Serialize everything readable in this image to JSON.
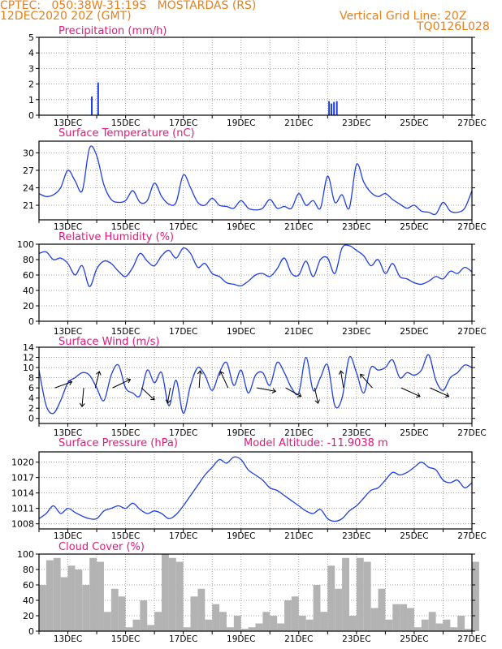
{
  "header": {
    "line1_left": "CPTEC:   050:38W-31:19S   MOSTARDAS (RS)",
    "line2_left": "12DEC2020 20Z (GMT)",
    "line1_right": "Vertical Grid Line: 20Z",
    "line2_right": "TQ0126L028"
  },
  "colors": {
    "header": "#e8801a",
    "panel_title": "#e0197a",
    "series": "#1f3fe0",
    "cloud_fill": "#b3b3b3",
    "wind_arrow": "#000000",
    "grid": "#888888"
  },
  "chart_data": [
    {
      "type": "bar",
      "title": "Precipitation (mm/h)",
      "x_tick_labels": [
        "13DEC",
        "15DEC",
        "17DEC",
        "19DEC",
        "21DEC",
        "23DEC",
        "25DEC",
        "27DEC"
      ],
      "xlim_days": [
        12.0,
        27.0
      ],
      "ylim": [
        0,
        5
      ],
      "y_ticks": [
        0,
        1,
        2,
        3,
        4,
        5
      ],
      "grid": true,
      "series": [
        {
          "x": [
            13.83,
            14.05,
            22.05,
            22.13,
            22.22,
            22.32
          ],
          "values": [
            1.2,
            2.1,
            0.9,
            0.75,
            0.85,
            0.9
          ]
        }
      ]
    },
    {
      "type": "line",
      "title": "Surface Temperature (nC)",
      "x_tick_labels": [
        "13DEC",
        "15DEC",
        "17DEC",
        "19DEC",
        "21DEC",
        "23DEC",
        "25DEC",
        "27DEC"
      ],
      "xlim_days": [
        12.0,
        27.0
      ],
      "ylim": [
        18.5,
        32
      ],
      "y_ticks": [
        21,
        24,
        27,
        30
      ],
      "grid": true,
      "series": [
        {
          "x": [
            12.0,
            12.25,
            12.5,
            12.75,
            13.0,
            13.25,
            13.5,
            13.75,
            14.0,
            14.25,
            14.5,
            14.75,
            15.0,
            15.25,
            15.5,
            15.75,
            16.0,
            16.25,
            16.5,
            16.75,
            17.0,
            17.25,
            17.5,
            17.75,
            18.0,
            18.25,
            18.5,
            18.75,
            19.0,
            19.25,
            19.5,
            19.75,
            20.0,
            20.25,
            20.5,
            20.75,
            21.0,
            21.25,
            21.5,
            21.75,
            22.0,
            22.25,
            22.5,
            22.75,
            23.0,
            23.25,
            23.5,
            23.75,
            24.0,
            24.25,
            24.5,
            24.75,
            25.0,
            25.25,
            25.5,
            25.75,
            26.0,
            26.25,
            26.5,
            26.75,
            27.0
          ],
          "values": [
            23.0,
            22.5,
            22.8,
            24.0,
            27.0,
            25.2,
            23.5,
            30.8,
            29.5,
            24.5,
            22.0,
            21.5,
            21.8,
            23.5,
            21.5,
            21.8,
            24.8,
            22.5,
            21.2,
            21.5,
            26.2,
            24.0,
            21.5,
            21.0,
            22.2,
            21.0,
            20.8,
            20.5,
            21.8,
            20.5,
            20.2,
            20.5,
            22.0,
            20.5,
            20.8,
            20.5,
            23.0,
            21.0,
            21.8,
            20.5,
            26.0,
            21.5,
            22.8,
            20.5,
            28.0,
            25.0,
            23.2,
            22.5,
            23.0,
            22.0,
            21.2,
            20.5,
            21.0,
            20.0,
            19.8,
            19.5,
            21.5,
            20.0,
            19.8,
            20.5,
            23.5
          ]
        }
      ]
    },
    {
      "type": "line",
      "title": "Relative Humidity (%)",
      "x_tick_labels": [
        "13DEC",
        "15DEC",
        "17DEC",
        "19DEC",
        "21DEC",
        "23DEC",
        "25DEC",
        "27DEC"
      ],
      "xlim_days": [
        12.0,
        27.0
      ],
      "ylim": [
        0,
        100
      ],
      "y_ticks": [
        0,
        20,
        40,
        60,
        80,
        100
      ],
      "grid": true,
      "series": [
        {
          "x": [
            12.0,
            12.25,
            12.5,
            12.75,
            13.0,
            13.25,
            13.5,
            13.75,
            14.0,
            14.25,
            14.5,
            14.75,
            15.0,
            15.25,
            15.5,
            15.75,
            16.0,
            16.25,
            16.5,
            16.75,
            17.0,
            17.25,
            17.5,
            17.75,
            18.0,
            18.25,
            18.5,
            18.75,
            19.0,
            19.25,
            19.5,
            19.75,
            20.0,
            20.25,
            20.5,
            20.75,
            21.0,
            21.25,
            21.5,
            21.75,
            22.0,
            22.25,
            22.5,
            22.75,
            23.0,
            23.25,
            23.5,
            23.75,
            24.0,
            24.25,
            24.5,
            24.75,
            25.0,
            25.25,
            25.5,
            25.75,
            26.0,
            26.25,
            26.5,
            26.75,
            27.0
          ],
          "values": [
            88,
            90,
            80,
            82,
            75,
            60,
            72,
            45,
            68,
            78,
            75,
            65,
            58,
            70,
            88,
            78,
            72,
            85,
            92,
            82,
            95,
            88,
            70,
            75,
            62,
            58,
            50,
            48,
            46,
            52,
            60,
            62,
            58,
            68,
            82,
            62,
            60,
            78,
            58,
            80,
            82,
            62,
            95,
            98,
            92,
            85,
            72,
            80,
            62,
            75,
            58,
            55,
            50,
            48,
            52,
            58,
            55,
            65,
            62,
            70,
            64
          ]
        }
      ]
    },
    {
      "type": "line",
      "title": "Surface Wind (m/s)",
      "x_tick_labels": [
        "13DEC",
        "15DEC",
        "17DEC",
        "19DEC",
        "21DEC",
        "23DEC",
        "25DEC",
        "27DEC"
      ],
      "xlim_days": [
        12.0,
        27.0
      ],
      "ylim": [
        -1,
        14
      ],
      "y_ticks": [
        0,
        2,
        4,
        6,
        8,
        10,
        12,
        14
      ],
      "grid": true,
      "series": [
        {
          "x": [
            12.0,
            12.25,
            12.5,
            12.75,
            13.0,
            13.25,
            13.5,
            13.75,
            14.0,
            14.25,
            14.5,
            14.75,
            15.0,
            15.25,
            15.5,
            15.75,
            16.0,
            16.25,
            16.5,
            16.75,
            17.0,
            17.25,
            17.5,
            17.75,
            18.0,
            18.25,
            18.5,
            18.75,
            19.0,
            19.25,
            19.5,
            19.75,
            20.0,
            20.25,
            20.5,
            20.75,
            21.0,
            21.25,
            21.5,
            21.75,
            22.0,
            22.25,
            22.5,
            22.75,
            23.0,
            23.25,
            23.5,
            23.75,
            24.0,
            24.25,
            24.5,
            24.75,
            25.0,
            25.25,
            25.5,
            25.75,
            26.0,
            26.25,
            26.5,
            26.75,
            27.0
          ],
          "values": [
            9.5,
            2.5,
            1.0,
            3.5,
            7.0,
            8.0,
            9.0,
            8.5,
            6.0,
            3.5,
            8.5,
            10.5,
            6.0,
            5.0,
            4.5,
            9.5,
            7.0,
            9.0,
            2.5,
            7.5,
            1.0,
            6.5,
            10.0,
            8.5,
            5.5,
            9.0,
            11.0,
            6.5,
            9.5,
            5.0,
            8.5,
            9.0,
            6.5,
            11.0,
            9.0,
            6.0,
            5.0,
            12.0,
            5.5,
            8.0,
            10.5,
            2.5,
            4.0,
            12.0,
            9.0,
            5.0,
            10.0,
            9.5,
            10.0,
            11.5,
            8.0,
            9.0,
            8.5,
            9.5,
            12.5,
            7.5,
            5.5,
            8.0,
            9.0,
            10.5,
            10.0
          ]
        }
      ],
      "wind_vectors": [
        {
          "day": 12.55,
          "u": 5.0,
          "v": 1.8
        },
        {
          "day": 13.55,
          "u": -0.5,
          "v": -5.5
        },
        {
          "day": 13.95,
          "u": 1.2,
          "v": 4.8
        },
        {
          "day": 14.55,
          "u": 5.2,
          "v": 2.5
        },
        {
          "day": 15.55,
          "u": 3.8,
          "v": -3.5
        },
        {
          "day": 16.55,
          "u": -0.8,
          "v": -4.5
        },
        {
          "day": 17.55,
          "u": 0.3,
          "v": 5.0
        },
        {
          "day": 18.55,
          "u": -2.2,
          "v": 4.8
        },
        {
          "day": 19.55,
          "u": 5.5,
          "v": -1.0
        },
        {
          "day": 20.55,
          "u": 4.5,
          "v": -2.5
        },
        {
          "day": 21.55,
          "u": 1.0,
          "v": -4.5
        },
        {
          "day": 22.55,
          "u": -0.8,
          "v": 5.0
        },
        {
          "day": 23.55,
          "u": -3.5,
          "v": 4.0
        },
        {
          "day": 24.55,
          "u": 5.5,
          "v": -2.5
        },
        {
          "day": 25.55,
          "u": 5.5,
          "v": -2.5
        }
      ]
    },
    {
      "type": "line",
      "title": "Surface Pressure (hPa)",
      "annotation": "Model Altitude: -11.9038 m",
      "x_tick_labels": [
        "13DEC",
        "15DEC",
        "17DEC",
        "19DEC",
        "21DEC",
        "23DEC",
        "25DEC",
        "27DEC"
      ],
      "xlim_days": [
        12.0,
        27.0
      ],
      "ylim": [
        1007,
        1022
      ],
      "y_ticks": [
        1008,
        1011,
        1014,
        1017,
        1020
      ],
      "grid": true,
      "series": [
        {
          "x": [
            12.0,
            12.25,
            12.5,
            12.75,
            13.0,
            13.25,
            13.5,
            13.75,
            14.0,
            14.25,
            14.5,
            14.75,
            15.0,
            15.25,
            15.5,
            15.75,
            16.0,
            16.25,
            16.5,
            16.75,
            17.0,
            17.25,
            17.5,
            17.75,
            18.0,
            18.25,
            18.5,
            18.75,
            19.0,
            19.25,
            19.5,
            19.75,
            20.0,
            20.25,
            20.5,
            20.75,
            21.0,
            21.25,
            21.5,
            21.75,
            22.0,
            22.25,
            22.5,
            22.75,
            23.0,
            23.25,
            23.5,
            23.75,
            24.0,
            24.25,
            24.5,
            24.75,
            25.0,
            25.25,
            25.5,
            25.75,
            26.0,
            26.25,
            26.5,
            26.75,
            27.0
          ],
          "values": [
            1009.0,
            1010.0,
            1011.5,
            1010.0,
            1011.0,
            1010.2,
            1009.5,
            1009.0,
            1009.0,
            1010.5,
            1011.0,
            1011.5,
            1011.0,
            1012.0,
            1010.8,
            1010.0,
            1010.5,
            1010.0,
            1009.0,
            1009.8,
            1011.5,
            1013.5,
            1015.5,
            1017.5,
            1019.0,
            1020.5,
            1019.8,
            1021.0,
            1020.5,
            1018.5,
            1017.5,
            1016.5,
            1015.0,
            1014.5,
            1013.5,
            1012.5,
            1011.5,
            1010.5,
            1010.0,
            1010.8,
            1009.0,
            1008.5,
            1009.0,
            1010.5,
            1011.5,
            1013.0,
            1014.5,
            1015.0,
            1016.5,
            1018.0,
            1017.5,
            1018.0,
            1019.0,
            1020.0,
            1019.0,
            1018.5,
            1016.5,
            1016.0,
            1016.5,
            1015.0,
            1016.0
          ]
        }
      ]
    },
    {
      "type": "area",
      "title": "Cloud Cover (%)",
      "x_tick_labels": [
        "13DEC",
        "15DEC",
        "17DEC",
        "19DEC",
        "21DEC",
        "23DEC",
        "25DEC",
        "27DEC"
      ],
      "xlim_days": [
        12.0,
        27.0
      ],
      "ylim": [
        0,
        100
      ],
      "y_ticks": [
        0,
        20,
        40,
        60,
        80,
        100
      ],
      "grid": true,
      "series": [
        {
          "x": [
            12.0,
            12.25,
            12.5,
            12.75,
            13.0,
            13.25,
            13.5,
            13.75,
            14.0,
            14.25,
            14.5,
            14.75,
            15.0,
            15.25,
            15.5,
            15.75,
            16.0,
            16.25,
            16.5,
            16.75,
            17.0,
            17.25,
            17.5,
            17.75,
            18.0,
            18.25,
            18.5,
            18.75,
            19.0,
            19.25,
            19.5,
            19.75,
            20.0,
            20.25,
            20.5,
            20.75,
            21.0,
            21.25,
            21.5,
            21.75,
            22.0,
            22.25,
            22.5,
            22.75,
            23.0,
            23.25,
            23.5,
            23.75,
            24.0,
            24.25,
            24.5,
            24.75,
            25.0,
            25.25,
            25.5,
            25.75,
            26.0,
            26.25,
            26.5,
            26.75,
            27.0
          ],
          "values": [
            60,
            92,
            95,
            70,
            85,
            80,
            60,
            95,
            90,
            25,
            55,
            45,
            5,
            15,
            40,
            8,
            25,
            100,
            95,
            90,
            5,
            45,
            55,
            15,
            35,
            25,
            5,
            20,
            3,
            5,
            10,
            25,
            20,
            10,
            40,
            45,
            20,
            15,
            60,
            25,
            85,
            55,
            95,
            20,
            95,
            90,
            30,
            55,
            15,
            35,
            35,
            30,
            5,
            15,
            25,
            10,
            15,
            5,
            20,
            3,
            90
          ]
        }
      ]
    }
  ]
}
